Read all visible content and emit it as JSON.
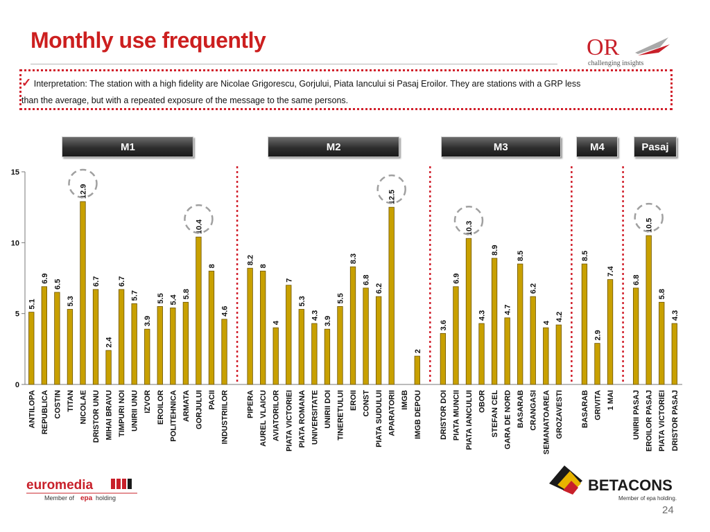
{
  "page": {
    "title": "Monthly use frequently",
    "interpretation_check": "✓",
    "interpretation_line1": "Interpretation: The station with a high fidelity are Nicolae Grigorescu, Gorjului, Piata Iancului si Pasaj Eroilor. They are stations with a GRP less",
    "interpretation_line2": "than the average, but  with a repeated exposure of the message to the same persons.",
    "page_number": "24",
    "logo_or_text": "OR",
    "logo_or_tagline": "challenging insights",
    "logo_euromedia": "euromedia",
    "logo_euromedia_member": "Member of",
    "logo_euromedia_holding": "holding",
    "logo_betacons": "BETACONS",
    "logo_betacons_member": "Member of epa holding.",
    "colors": {
      "bar": "#c8a000",
      "bar_edge": "#6b5200",
      "divider": "#d11f2b",
      "circle": "#a0a0a0",
      "title": "#cc1f1f"
    }
  },
  "groups": [
    {
      "label": "M1",
      "start": 0,
      "end": 15
    },
    {
      "label": "M2",
      "start": 16,
      "end": 30
    },
    {
      "label": "M3",
      "start": 31,
      "end": 41
    },
    {
      "label": "M4",
      "start": 42,
      "end": 44
    },
    {
      "label": "Pasaj",
      "start": 45,
      "end": 48
    }
  ],
  "chart_data": {
    "type": "bar",
    "ylim": [
      0,
      15
    ],
    "yticks": [
      0,
      5,
      10,
      15
    ],
    "categories": [
      "ANTILOPA",
      "REPUBLICA",
      "COSTIN",
      "TITAN",
      "NICOLAE",
      "DRISTOR UNU",
      "MIHAI BRAVU",
      "TIMPURI NOI",
      "UNIRII UNU",
      "IZVOR",
      "EROILOR",
      "POLITEHNICA",
      "ARMATA",
      "GORJULUI",
      "PACII",
      "INDUSTRIILOR",
      "PIPERA",
      "AUREL VLAICU",
      "AVIATORILOR",
      "PIATA VICTORIEI",
      "PIATA ROMANA",
      "UNIVERSITATE",
      "UNIRII DOI",
      "TINERETULUI",
      "EROII",
      "CONST",
      "PIATA SUDULUI",
      "APARATORII",
      "IMGB",
      "IMGB DEPOU",
      "DRISTOR DOI",
      "PIATA MUNCII",
      "PIATA IANCULUI",
      "OBOR",
      "STEFAN CEL",
      "GARA DE NORD",
      "BASARAB",
      "CRANGASI",
      "SEMANATOAREA",
      "GROZAVESTI",
      "BASARAB",
      "GRIVITA",
      "1 MAI",
      "UNIRII PASAJ",
      "EROILOR PASAJ",
      "PIATA VICTORIEI",
      "DRISTOR PASAJ"
    ],
    "values": [
      5.1,
      6.9,
      6.5,
      5.3,
      12.9,
      6.7,
      2.4,
      6.7,
      5.7,
      3.9,
      5.5,
      5.4,
      5.8,
      10.4,
      8,
      4.6,
      8.2,
      8,
      4,
      7,
      5.3,
      4.3,
      3.9,
      5.5,
      8.3,
      6.8,
      6.2,
      12.5,
      null,
      2,
      3.6,
      6.9,
      10.3,
      4.3,
      8.9,
      4.7,
      8.5,
      6.2,
      4,
      4.2,
      8.5,
      2.9,
      7.4,
      6.8,
      10.5,
      5.8,
      4.3
    ],
    "value_labels": [
      "5.1",
      "6.9",
      "6.5",
      "5.3",
      "12.9",
      "6.7",
      "2.4",
      "6.7",
      "5.7",
      "3.9",
      "5.5",
      "5.4",
      "5.8",
      "10.4",
      "8",
      "4.6",
      "8.2",
      "8",
      "4",
      "7",
      "5.3",
      "4.3",
      "3.9",
      "5.5",
      "8.3",
      "6.8",
      "6.2",
      "12.5",
      "",
      "2",
      "3.6",
      "6.9",
      "10.3",
      "4.3",
      "8.9",
      "4.7",
      "8.5",
      "6.2",
      "4",
      "4.2",
      "8.5",
      "2.9",
      "7.4",
      "6.8",
      "10.5",
      "5.8",
      "4.3"
    ],
    "highlighted": [
      4,
      13,
      27,
      32,
      44
    ],
    "slot_index": [
      0,
      1,
      2,
      3,
      4,
      5,
      6,
      7,
      8,
      9,
      10,
      11,
      12,
      13,
      14,
      15,
      17,
      18,
      19,
      20,
      21,
      22,
      23,
      24,
      25,
      26,
      27,
      28,
      29,
      30,
      32,
      33,
      34,
      35,
      36,
      37,
      38,
      39,
      40,
      41,
      43,
      44,
      45,
      47,
      48,
      49,
      50
    ],
    "dividers_after_slot": [
      16,
      31,
      42,
      46
    ],
    "group_slots": [
      [
        0,
        15
      ],
      [
        17,
        30
      ],
      [
        32,
        41
      ],
      [
        43,
        45
      ],
      [
        47,
        50
      ]
    ]
  }
}
